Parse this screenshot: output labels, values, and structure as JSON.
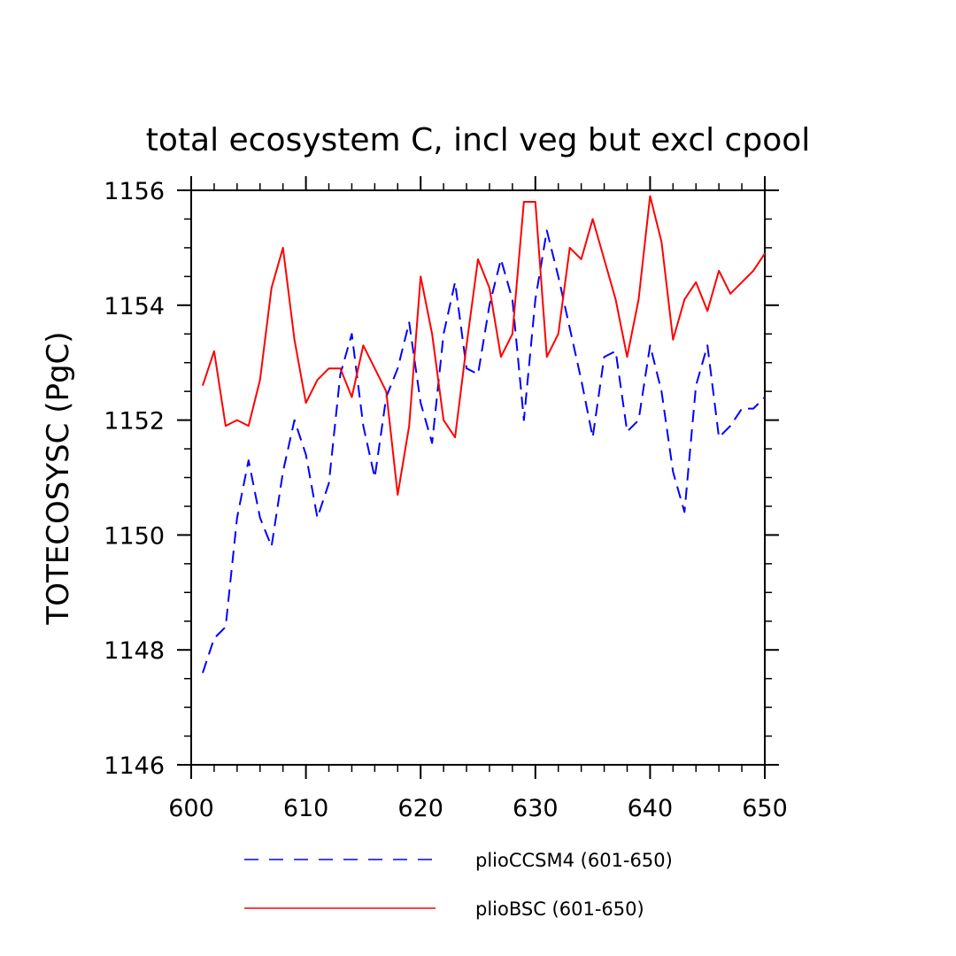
{
  "chart_data": {
    "type": "line",
    "title": "total ecosystem C, incl veg but excl cpool",
    "xlabel": "",
    "ylabel": "TOTECOSYSC  (PgC)",
    "xlim": [
      600,
      650
    ],
    "ylim": [
      1146,
      1156
    ],
    "xticks": [
      600,
      610,
      620,
      630,
      640,
      650
    ],
    "yticks": [
      1146,
      1148,
      1150,
      1152,
      1154,
      1156
    ],
    "legend_position": "bottom",
    "grid": false,
    "x": [
      601,
      602,
      603,
      604,
      605,
      606,
      607,
      608,
      609,
      610,
      611,
      612,
      613,
      614,
      615,
      616,
      617,
      618,
      619,
      620,
      621,
      622,
      623,
      624,
      625,
      626,
      627,
      628,
      629,
      630,
      631,
      632,
      633,
      634,
      635,
      636,
      637,
      638,
      639,
      640,
      641,
      642,
      643,
      644,
      645,
      646,
      647,
      648,
      649,
      650
    ],
    "series": [
      {
        "name": "plioCCSM4 (601-650)",
        "color": "#0000ff",
        "style": "dashed",
        "values": [
          1147.6,
          1148.2,
          1148.4,
          1150.3,
          1151.3,
          1150.3,
          1149.8,
          1151.1,
          1152.0,
          1151.4,
          1150.3,
          1150.9,
          1152.8,
          1153.5,
          1151.9,
          1151.0,
          1152.4,
          1152.9,
          1153.7,
          1152.3,
          1151.6,
          1153.5,
          1154.4,
          1152.9,
          1152.8,
          1154.0,
          1154.8,
          1154.1,
          1152.0,
          1154.1,
          1155.3,
          1154.5,
          1153.6,
          1152.7,
          1151.7,
          1153.1,
          1153.2,
          1151.8,
          1152.0,
          1153.3,
          1152.5,
          1151.1,
          1150.4,
          1152.6,
          1153.3,
          1151.7,
          1151.9,
          1152.2,
          1152.2,
          1152.4
        ]
      },
      {
        "name": "plioBSC (601-650)",
        "color": "#ff0000",
        "style": "solid",
        "values": [
          1152.6,
          1153.2,
          1151.9,
          1152.0,
          1151.9,
          1152.7,
          1154.3,
          1155.0,
          1153.4,
          1152.3,
          1152.7,
          1152.9,
          1152.9,
          1152.4,
          1153.3,
          1152.9,
          1152.5,
          1150.7,
          1151.9,
          1154.5,
          1153.5,
          1152.0,
          1151.7,
          1153.3,
          1154.8,
          1154.3,
          1153.1,
          1153.5,
          1155.8,
          1155.8,
          1153.1,
          1153.5,
          1155.0,
          1154.8,
          1155.5,
          1154.8,
          1154.1,
          1153.1,
          1154.1,
          1155.9,
          1155.1,
          1153.4,
          1154.1,
          1154.4,
          1153.9,
          1154.6,
          1154.2,
          1154.4,
          1154.6,
          1154.9
        ]
      }
    ]
  }
}
